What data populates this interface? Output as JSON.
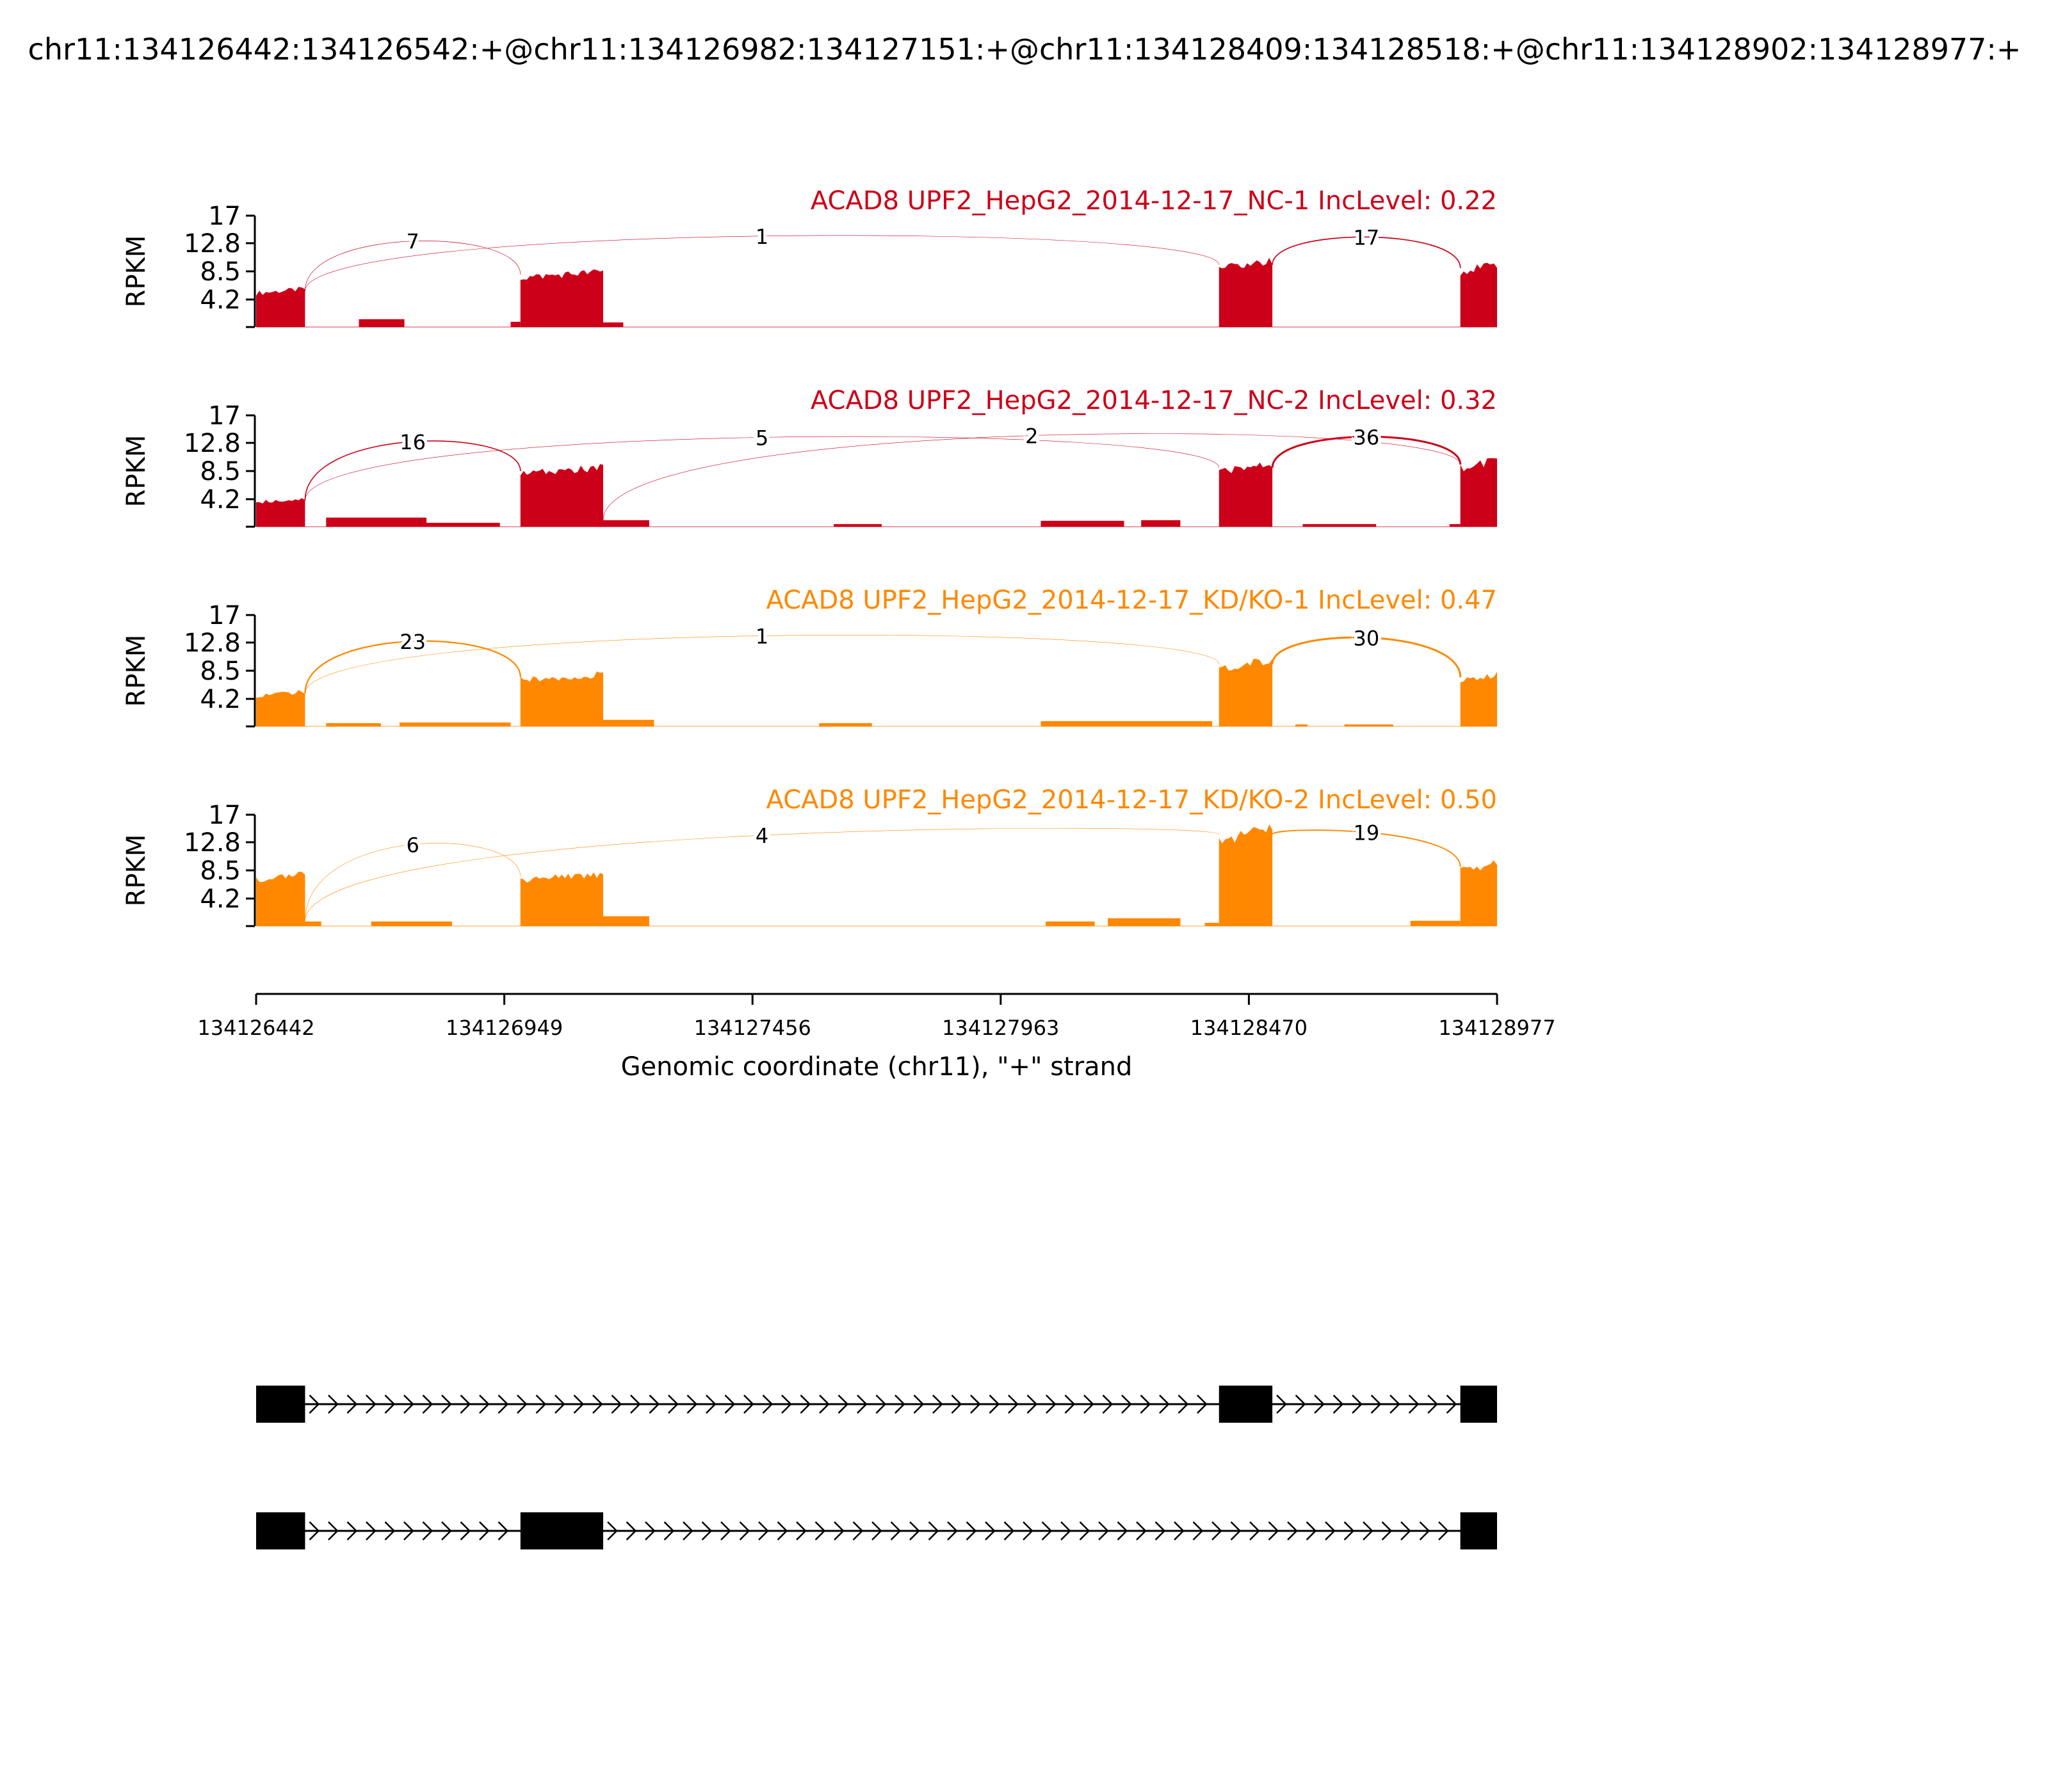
{
  "title": "chr11:134126442:134126542:+@chr11:134126982:134127151:+@chr11:134128409:134128518:+@chr11:134128902:134128977:+",
  "colors": {
    "control": "#cc0018",
    "knockdown": "#ff8800",
    "axis": "#000000",
    "gene": "#000000"
  },
  "chart_data": {
    "type": "area",
    "xlabel": "Genomic coordinate (chr11), \"+\" strand",
    "xlim": [
      134126442,
      134128977
    ],
    "xticks": [
      "134126442",
      "134126949",
      "134127456",
      "134127963",
      "134128470",
      "134128977"
    ],
    "ylabel": "RPKM",
    "ylim": [
      0,
      17
    ],
    "yticks": [
      "4.2",
      "8.5",
      "12.8",
      "17"
    ],
    "series": [
      {
        "name": "ACAD8 UPF2_HepG2_2014-12-17_NC-1 IncLevel: 0.22",
        "group": "control",
        "coverage": [
          {
            "start": 134126442,
            "end": 134126542,
            "value": 5.5
          },
          {
            "start": 134126652,
            "end": 134126745,
            "value": 1.2
          },
          {
            "start": 134126962,
            "end": 134126982,
            "value": 0.8
          },
          {
            "start": 134126982,
            "end": 134127151,
            "value": 8.0
          },
          {
            "start": 134127151,
            "end": 134127192,
            "value": 0.7
          },
          {
            "start": 134128409,
            "end": 134128518,
            "value": 9.5
          },
          {
            "start": 134128902,
            "end": 134128977,
            "value": 9.0
          }
        ],
        "junctions": [
          {
            "from": 134126542,
            "to": 134126982,
            "count": "7"
          },
          {
            "from": 134126542,
            "to": 134128409,
            "count": "1"
          },
          {
            "from": 134128518,
            "to": 134128902,
            "count": "17"
          }
        ]
      },
      {
        "name": "ACAD8 UPF2_HepG2_2014-12-17_NC-2 IncLevel: 0.32",
        "group": "control",
        "coverage": [
          {
            "start": 134126442,
            "end": 134126542,
            "value": 4.0
          },
          {
            "start": 134126585,
            "end": 134126790,
            "value": 1.4
          },
          {
            "start": 134126790,
            "end": 134126940,
            "value": 0.6
          },
          {
            "start": 134126982,
            "end": 134127151,
            "value": 8.5
          },
          {
            "start": 134127151,
            "end": 134127245,
            "value": 1.0
          },
          {
            "start": 134127622,
            "end": 134127720,
            "value": 0.4
          },
          {
            "start": 134128045,
            "end": 134128215,
            "value": 0.9
          },
          {
            "start": 134128250,
            "end": 134128330,
            "value": 1.0
          },
          {
            "start": 134128409,
            "end": 134128518,
            "value": 9.0
          },
          {
            "start": 134128580,
            "end": 134128730,
            "value": 0.4
          },
          {
            "start": 134128880,
            "end": 134128902,
            "value": 0.4
          },
          {
            "start": 134128902,
            "end": 134128977,
            "value": 9.5
          }
        ],
        "junctions": [
          {
            "from": 134126542,
            "to": 134126982,
            "count": "16"
          },
          {
            "from": 134126542,
            "to": 134128409,
            "count": "5"
          },
          {
            "from": 134127151,
            "to": 134128902,
            "count": "2"
          },
          {
            "from": 134128518,
            "to": 134128902,
            "count": "36"
          }
        ]
      },
      {
        "name": "ACAD8 UPF2_HepG2_2014-12-17_KD/KO-1 IncLevel: 0.47",
        "group": "knockdown",
        "coverage": [
          {
            "start": 134126442,
            "end": 134126542,
            "value": 5.0
          },
          {
            "start": 134126585,
            "end": 134126697,
            "value": 0.5
          },
          {
            "start": 134126735,
            "end": 134126962,
            "value": 0.6
          },
          {
            "start": 134126982,
            "end": 134127151,
            "value": 7.5
          },
          {
            "start": 134127151,
            "end": 134127255,
            "value": 1.0
          },
          {
            "start": 134127592,
            "end": 134127700,
            "value": 0.5
          },
          {
            "start": 134128045,
            "end": 134128395,
            "value": 0.8
          },
          {
            "start": 134128409,
            "end": 134128518,
            "value": 9.5
          },
          {
            "start": 134128565,
            "end": 134128590,
            "value": 0.3
          },
          {
            "start": 134128665,
            "end": 134128765,
            "value": 0.3
          },
          {
            "start": 134128902,
            "end": 134128977,
            "value": 7.5
          }
        ],
        "junctions": [
          {
            "from": 134126542,
            "to": 134126982,
            "count": "23"
          },
          {
            "from": 134126542,
            "to": 134128409,
            "count": "1"
          },
          {
            "from": 134128518,
            "to": 134128902,
            "count": "30"
          }
        ]
      },
      {
        "name": "ACAD8 UPF2_HepG2_2014-12-17_KD/KO-2 IncLevel: 0.50",
        "group": "knockdown",
        "coverage": [
          {
            "start": 134126442,
            "end": 134126542,
            "value": 7.5
          },
          {
            "start": 134126542,
            "end": 134126575,
            "value": 0.7
          },
          {
            "start": 134126677,
            "end": 134126842,
            "value": 0.7
          },
          {
            "start": 134126982,
            "end": 134127151,
            "value": 7.5
          },
          {
            "start": 134127151,
            "end": 134127245,
            "value": 1.5
          },
          {
            "start": 134128055,
            "end": 134128155,
            "value": 0.7
          },
          {
            "start": 134128182,
            "end": 134128330,
            "value": 1.2
          },
          {
            "start": 134128380,
            "end": 134128409,
            "value": 0.5
          },
          {
            "start": 134128409,
            "end": 134128518,
            "value": 14.0
          },
          {
            "start": 134128800,
            "end": 134128902,
            "value": 0.8
          },
          {
            "start": 134128902,
            "end": 134128977,
            "value": 9.0
          }
        ],
        "junctions": [
          {
            "from": 134126542,
            "to": 134126982,
            "count": "6"
          },
          {
            "from": 134126542,
            "to": 134128409,
            "count": "4"
          },
          {
            "from": 134128518,
            "to": 134128902,
            "count": "19"
          }
        ]
      }
    ],
    "isoforms": [
      {
        "exons": [
          [
            134126442,
            134126542
          ],
          [
            134128409,
            134128518
          ],
          [
            134128902,
            134128977
          ]
        ]
      },
      {
        "exons": [
          [
            134126442,
            134126542
          ],
          [
            134126982,
            134127151
          ],
          [
            134128902,
            134128977
          ]
        ]
      }
    ]
  }
}
